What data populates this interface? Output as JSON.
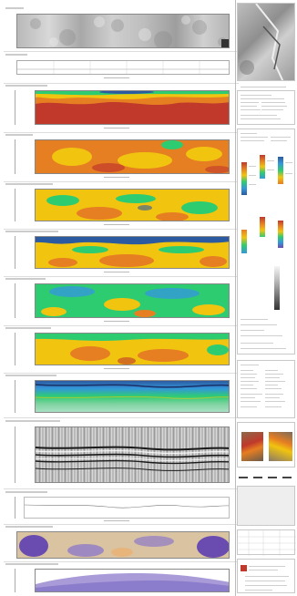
{
  "colors": {
    "low": "#c0392b",
    "mid_high": "#e67e22",
    "mid": "#f1c40f",
    "mid_low": "#2ecc71",
    "high": "#2c5aa0",
    "purple": "#6a4cb0"
  },
  "sheet": {
    "panel_count": 12,
    "sidebar_sections": [
      "location-map",
      "title-block",
      "legend",
      "statistics",
      "site-photos",
      "revision-table",
      "footer-block"
    ]
  }
}
